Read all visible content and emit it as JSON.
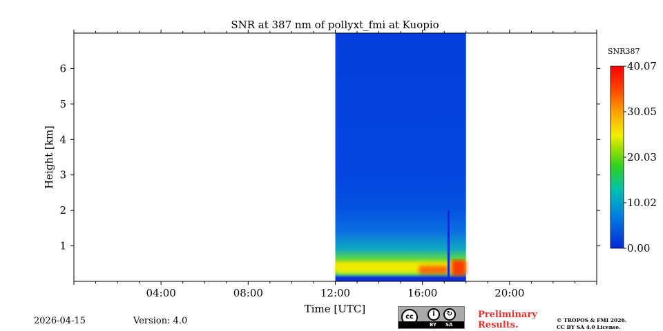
{
  "chart_data": {
    "type": "heatmap",
    "title": "SNR at 387 nm of pollyxt_fmi at Kuopio",
    "xlabel": "Time [UTC]",
    "ylabel": "Height [km]",
    "xlim_hours": [
      0,
      24
    ],
    "ylim_km": [
      0,
      7
    ],
    "x_ticks": [
      {
        "hour": 4,
        "label": "04:00"
      },
      {
        "hour": 8,
        "label": "08:00"
      },
      {
        "hour": 12,
        "label": "12:00"
      },
      {
        "hour": 16,
        "label": "16:00"
      },
      {
        "hour": 20,
        "label": "20:00"
      }
    ],
    "y_ticks": [
      {
        "km": 1,
        "label": "1"
      },
      {
        "km": 2,
        "label": "2"
      },
      {
        "km": 3,
        "label": "3"
      },
      {
        "km": 4,
        "label": "4"
      },
      {
        "km": 5,
        "label": "5"
      },
      {
        "km": 6,
        "label": "6"
      }
    ],
    "data_window_hours": [
      12.0,
      18.0
    ],
    "colorbar": {
      "label": "SNR387",
      "range": [
        0.0,
        40.07
      ],
      "tick_values": [
        0.0,
        10.02,
        20.03,
        30.05,
        40.07
      ],
      "tick_labels": [
        "0.00",
        "10.02",
        "20.03",
        "30.05",
        "40.07"
      ],
      "colormap": "jet"
    },
    "features": [
      {
        "desc": "near-surface high SNR layer",
        "time_hours": [
          12.0,
          18.0
        ],
        "height_km": [
          0.2,
          0.5
        ],
        "snr": 25
      },
      {
        "desc": "strong signal patch",
        "time_hours": [
          15.8,
          17.2
        ],
        "height_km": [
          0.2,
          0.45
        ],
        "snr": 34
      },
      {
        "desc": "strong signal patch",
        "time_hours": [
          17.3,
          18.0
        ],
        "height_km": [
          0.15,
          0.6
        ],
        "snr": 38
      },
      {
        "desc": "data gap",
        "time_hours": [
          17.15,
          17.25
        ],
        "height_km": [
          0,
          2.0
        ],
        "snr": 0
      }
    ]
  },
  "footer": {
    "date": "2026-04-15",
    "version": "Version: 4.0",
    "preliminary_line1": "Preliminary",
    "preliminary_line2": "Results.",
    "copyright_line1": "© TROPOS & FMI 2026.",
    "copyright_line2": "CC BY SA 4.0 License.",
    "license_cc": "cc",
    "license_by": "BY",
    "license_sa": "SA"
  }
}
